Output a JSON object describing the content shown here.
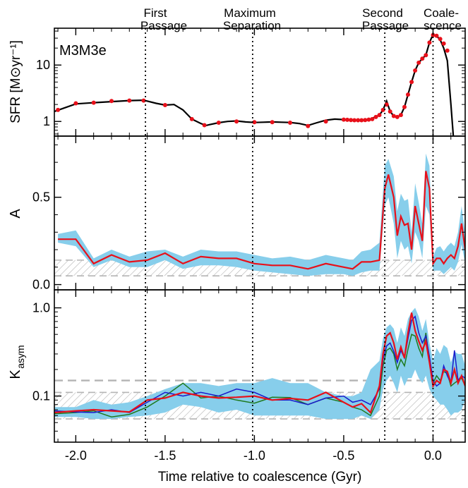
{
  "events": [
    {
      "x": -1.61,
      "lines": [
        "First",
        "Passage"
      ]
    },
    {
      "x": -1.01,
      "lines": [
        "Maximum",
        "Separation"
      ]
    },
    {
      "x": -0.27,
      "lines": [
        "Second",
        "Passage"
      ]
    },
    {
      "x": 0.0,
      "lines": [
        "Coale-",
        "scence"
      ]
    }
  ],
  "xlabel": "Time relative to coalescence (Gyr)",
  "xticks": [
    -2.0,
    -1.5,
    -1.0,
    -0.5,
    0.0
  ],
  "xtick_labels": [
    "-2.0",
    "-1.5",
    "-1.0",
    "-0.5",
    "0.0"
  ],
  "xlim": [
    -2.12,
    0.18
  ],
  "colors": {
    "band": "#87ceeb",
    "red": "#e8101a",
    "blue": "#1a1acc",
    "green": "#1f7a1f",
    "black": "#000000",
    "hatch": "#b4b4b4"
  },
  "chart_data": [
    {
      "type": "line",
      "panel": "sfr",
      "label": "M3M3e",
      "ylabel": "SFR [M⊙yr⁻¹]",
      "yscale": "log",
      "ylim": [
        0.55,
        45
      ],
      "yticks": [
        1,
        10
      ],
      "ytick_labels": [
        "1",
        "10"
      ],
      "curve": {
        "x": [
          -2.12,
          -2.0,
          -1.9,
          -1.8,
          -1.7,
          -1.62,
          -1.55,
          -1.5,
          -1.45,
          -1.4,
          -1.35,
          -1.3,
          -1.27,
          -1.25,
          -1.2,
          -1.15,
          -1.1,
          -1.05,
          -1.0,
          -0.95,
          -0.9,
          -0.85,
          -0.8,
          -0.75,
          -0.7,
          -0.65,
          -0.6,
          -0.55,
          -0.5,
          -0.45,
          -0.4,
          -0.35,
          -0.3,
          -0.28,
          -0.26,
          -0.24,
          -0.22,
          -0.2,
          -0.18,
          -0.16,
          -0.14,
          -0.12,
          -0.1,
          -0.08,
          -0.06,
          -0.04,
          -0.02,
          0.0,
          0.02,
          0.04,
          0.06,
          0.08,
          0.1,
          0.12
        ],
        "y": [
          1.5,
          2.05,
          2.15,
          2.25,
          2.35,
          2.38,
          2.1,
          1.95,
          2.0,
          1.6,
          1.1,
          0.92,
          0.85,
          0.88,
          0.95,
          1.0,
          1.02,
          0.98,
          0.96,
          0.97,
          0.98,
          0.97,
          0.96,
          0.92,
          0.85,
          0.95,
          1.05,
          1.1,
          1.08,
          1.05,
          1.05,
          1.1,
          1.3,
          1.6,
          2.3,
          1.5,
          1.25,
          1.2,
          1.3,
          1.8,
          3.0,
          5.0,
          8.0,
          11.0,
          13.0,
          15.0,
          25.0,
          35.0,
          33.0,
          28.0,
          20.0,
          12.0,
          2.0,
          0.3
        ]
      },
      "points": {
        "x": [
          -2.1,
          -2.0,
          -1.9,
          -1.8,
          -1.7,
          -1.62,
          -1.5,
          -1.35,
          -1.28,
          -1.2,
          -1.1,
          -1.0,
          -0.9,
          -0.8,
          -0.7,
          -0.6,
          -0.5,
          -0.48,
          -0.46,
          -0.44,
          -0.42,
          -0.4,
          -0.38,
          -0.36,
          -0.34,
          -0.32,
          -0.3,
          -0.28,
          -0.26,
          -0.24,
          -0.22,
          -0.2,
          -0.18,
          -0.16,
          -0.14,
          -0.12,
          -0.1,
          -0.08,
          -0.06,
          -0.04,
          -0.02,
          0.0,
          0.02,
          0.04,
          0.06,
          0.08
        ],
        "y": [
          1.6,
          2.1,
          2.15,
          2.3,
          2.35,
          2.35,
          1.95,
          1.1,
          0.86,
          0.95,
          1.0,
          0.97,
          0.97,
          0.95,
          0.83,
          1.0,
          1.08,
          1.07,
          1.06,
          1.05,
          1.05,
          1.05,
          1.06,
          1.08,
          1.1,
          1.2,
          1.3,
          1.6,
          2.0,
          1.5,
          1.25,
          1.2,
          1.3,
          1.8,
          3.0,
          5.0,
          8.0,
          11.0,
          13.0,
          15.0,
          25.0,
          34.0,
          33.0,
          29.0,
          24.0,
          18.0
        ]
      }
    },
    {
      "type": "line",
      "panel": "A",
      "ylabel": "A",
      "yscale": "linear",
      "ylim": [
        -0.03,
        0.85
      ],
      "yticks": [
        0.0,
        0.5
      ],
      "ytick_labels": [
        "0.0",
        "0.5"
      ],
      "hatch_band": [
        0.05,
        0.14
      ],
      "series": {
        "x": [
          -2.1,
          -2.0,
          -1.9,
          -1.8,
          -1.7,
          -1.6,
          -1.5,
          -1.4,
          -1.3,
          -1.2,
          -1.1,
          -1.0,
          -0.9,
          -0.8,
          -0.7,
          -0.6,
          -0.5,
          -0.45,
          -0.4,
          -0.35,
          -0.3,
          -0.27,
          -0.25,
          -0.22,
          -0.2,
          -0.18,
          -0.16,
          -0.14,
          -0.12,
          -0.1,
          -0.08,
          -0.06,
          -0.04,
          -0.02,
          0.0,
          0.02,
          0.04,
          0.06,
          0.08,
          0.1,
          0.12,
          0.14,
          0.16,
          0.18
        ],
        "y": [
          0.26,
          0.26,
          0.12,
          0.17,
          0.13,
          0.14,
          0.18,
          0.12,
          0.16,
          0.15,
          0.15,
          0.12,
          0.11,
          0.11,
          0.09,
          0.12,
          0.1,
          0.09,
          0.13,
          0.13,
          0.14,
          0.55,
          0.63,
          0.5,
          0.28,
          0.39,
          0.34,
          0.35,
          0.2,
          0.45,
          0.35,
          0.25,
          0.65,
          0.55,
          0.12,
          0.15,
          0.15,
          0.12,
          0.15,
          0.17,
          0.15,
          0.22,
          0.35,
          0.2
        ],
        "lo": [
          0.24,
          0.22,
          0.1,
          0.14,
          0.1,
          0.1,
          0.14,
          0.09,
          0.11,
          0.11,
          0.1,
          0.08,
          0.07,
          0.06,
          0.05,
          0.06,
          0.06,
          0.05,
          0.07,
          0.08,
          0.08,
          0.45,
          0.5,
          0.35,
          0.15,
          0.25,
          0.2,
          0.22,
          0.12,
          0.3,
          0.25,
          0.15,
          0.45,
          0.4,
          0.08,
          0.08,
          0.08,
          0.06,
          0.08,
          0.1,
          0.08,
          0.13,
          0.23,
          0.12
        ],
        "hi": [
          0.29,
          0.31,
          0.15,
          0.2,
          0.16,
          0.19,
          0.2,
          0.16,
          0.2,
          0.19,
          0.19,
          0.17,
          0.15,
          0.16,
          0.14,
          0.17,
          0.15,
          0.14,
          0.19,
          0.2,
          0.24,
          0.68,
          0.72,
          0.62,
          0.42,
          0.52,
          0.48,
          0.49,
          0.3,
          0.58,
          0.47,
          0.35,
          0.75,
          0.68,
          0.16,
          0.21,
          0.22,
          0.19,
          0.22,
          0.24,
          0.22,
          0.3,
          0.45,
          0.29
        ]
      }
    },
    {
      "type": "line",
      "panel": "Kasym",
      "ylabel": "K",
      "ylabel_sub": "asym",
      "yscale": "log",
      "ylim": [
        0.03,
        1.6
      ],
      "yticks": [
        0.1,
        1.0
      ],
      "ytick_labels": [
        "0.1",
        "1.0"
      ],
      "hatch_band": [
        0.055,
        0.11
      ],
      "dashed_line": 0.15,
      "x": [
        -2.12,
        -2.0,
        -1.9,
        -1.8,
        -1.7,
        -1.6,
        -1.5,
        -1.4,
        -1.3,
        -1.2,
        -1.1,
        -1.0,
        -0.9,
        -0.8,
        -0.7,
        -0.6,
        -0.5,
        -0.45,
        -0.4,
        -0.35,
        -0.3,
        -0.28,
        -0.26,
        -0.24,
        -0.22,
        -0.2,
        -0.18,
        -0.16,
        -0.14,
        -0.12,
        -0.1,
        -0.08,
        -0.06,
        -0.04,
        -0.02,
        0.0,
        0.02,
        0.04,
        0.06,
        0.08,
        0.1,
        0.12,
        0.14,
        0.16,
        0.18
      ],
      "band_lo": [
        0.058,
        0.058,
        0.055,
        0.055,
        0.058,
        0.06,
        0.065,
        0.08,
        0.075,
        0.065,
        0.07,
        0.06,
        0.06,
        0.06,
        0.06,
        0.055,
        0.055,
        0.055,
        0.06,
        0.055,
        0.07,
        0.12,
        0.15,
        0.17,
        0.14,
        0.11,
        0.17,
        0.13,
        0.16,
        0.16,
        0.2,
        0.16,
        0.14,
        0.17,
        0.12,
        0.1,
        0.09,
        0.08,
        0.08,
        0.07,
        0.06,
        0.065,
        0.065,
        0.07,
        0.09
      ],
      "band_hi": [
        0.075,
        0.075,
        0.09,
        0.08,
        0.085,
        0.1,
        0.12,
        0.14,
        0.14,
        0.13,
        0.14,
        0.14,
        0.16,
        0.14,
        0.14,
        0.11,
        0.1,
        0.1,
        0.11,
        0.2,
        0.25,
        0.45,
        0.6,
        0.65,
        0.58,
        0.4,
        0.6,
        0.48,
        0.75,
        0.9,
        1.0,
        0.8,
        0.55,
        0.75,
        0.4,
        0.25,
        0.35,
        0.3,
        0.38,
        0.35,
        0.24,
        0.32,
        0.3,
        0.3,
        0.22
      ],
      "series": [
        {
          "color": "green",
          "y": [
            0.063,
            0.065,
            0.068,
            0.058,
            0.062,
            0.075,
            0.1,
            0.14,
            0.095,
            0.1,
            0.09,
            0.083,
            0.097,
            0.096,
            0.08,
            0.095,
            0.085,
            0.075,
            0.07,
            0.06,
            0.1,
            0.22,
            0.33,
            0.35,
            0.3,
            0.2,
            0.26,
            0.22,
            0.34,
            0.5,
            0.48,
            0.35,
            0.28,
            0.52,
            0.25,
            0.14,
            0.17,
            0.15,
            0.19,
            0.18,
            0.13,
            0.14,
            0.15,
            0.16,
            0.13
          ]
        },
        {
          "color": "blue",
          "y": [
            0.068,
            0.066,
            0.065,
            0.07,
            0.065,
            0.085,
            0.11,
            0.1,
            0.11,
            0.1,
            0.12,
            0.11,
            0.09,
            0.09,
            0.08,
            0.095,
            0.1,
            0.085,
            0.09,
            0.08,
            0.12,
            0.26,
            0.37,
            0.4,
            0.32,
            0.24,
            0.33,
            0.27,
            0.45,
            0.72,
            0.8,
            0.52,
            0.4,
            0.48,
            0.28,
            0.15,
            0.13,
            0.14,
            0.22,
            0.17,
            0.14,
            0.33,
            0.15,
            0.17,
            0.16
          ]
        },
        {
          "color": "red",
          "y": [
            0.065,
            0.068,
            0.07,
            0.068,
            0.066,
            0.09,
            0.095,
            0.11,
            0.1,
            0.095,
            0.097,
            0.1,
            0.09,
            0.094,
            0.09,
            0.11,
            0.085,
            0.075,
            0.082,
            0.065,
            0.13,
            0.3,
            0.48,
            0.52,
            0.4,
            0.26,
            0.36,
            0.27,
            0.52,
            0.88,
            0.55,
            0.42,
            0.33,
            0.42,
            0.24,
            0.13,
            0.15,
            0.14,
            0.2,
            0.19,
            0.14,
            0.2,
            0.14,
            0.17,
            0.13
          ]
        }
      ]
    }
  ]
}
